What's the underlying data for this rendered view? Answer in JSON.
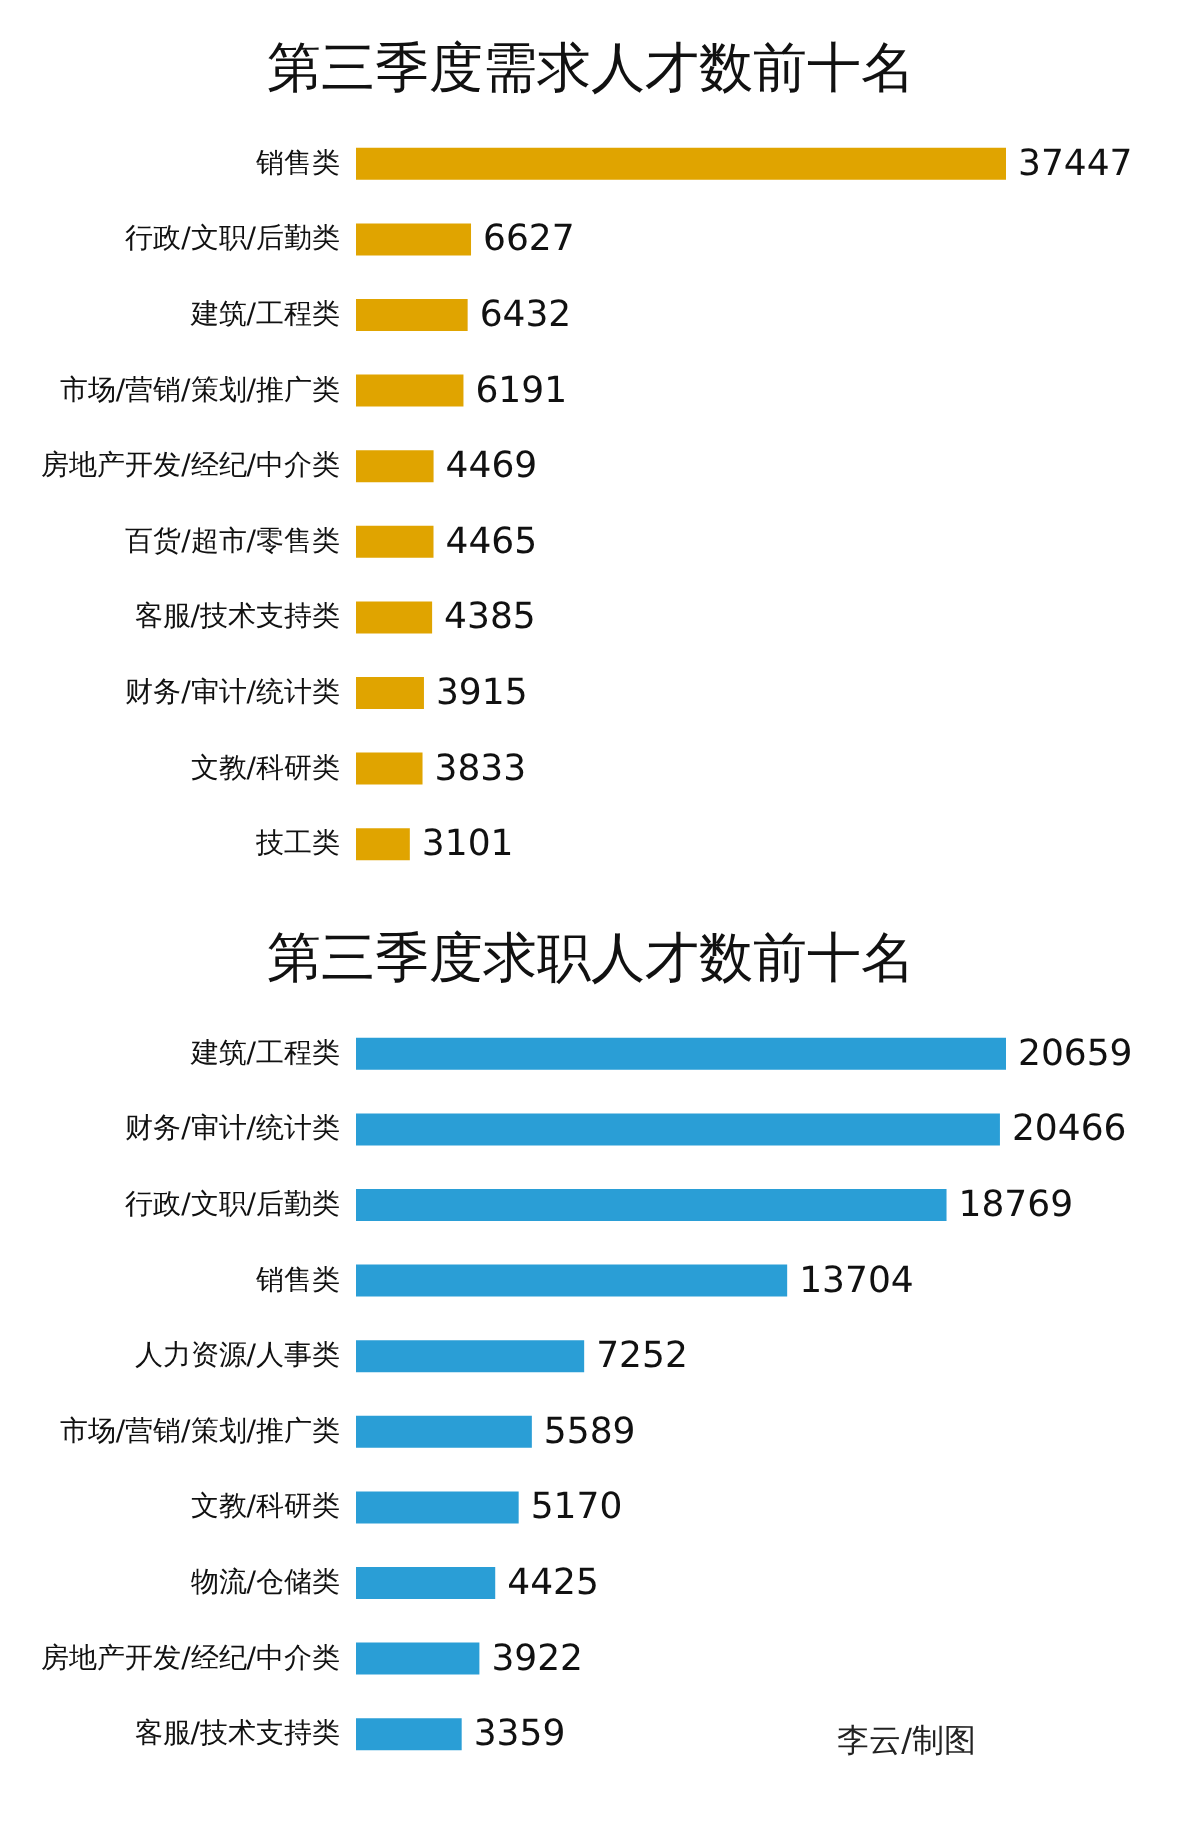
{
  "chart_data": [
    {
      "type": "bar",
      "title": "第三季度需求人才数前十名",
      "orientation": "horizontal",
      "data_labels": true,
      "color": "#e0a400",
      "categories": [
        "销售类",
        "行政/文职/后勤类",
        "建筑/工程类",
        "市场/营销/策划/推广类",
        "房地产开发/经纪/中介类",
        "百货/超市/零售类",
        "客服/技术支持类",
        "财务/审计/统计类",
        "文教/科研类",
        "技工类"
      ],
      "values": [
        37447,
        6627,
        6432,
        6191,
        4469,
        4465,
        4385,
        3915,
        3833,
        3101
      ]
    },
    {
      "type": "bar",
      "title": "第三季度求职人才数前十名",
      "orientation": "horizontal",
      "data_labels": true,
      "color": "#2a9ed6",
      "categories": [
        "建筑/工程类",
        "财务/审计/统计类",
        "行政/文职/后勤类",
        "销售类",
        "人力资源/人事类",
        "市场/营销/策划/推广类",
        "文教/科研类",
        "物流/仓储类",
        "房地产开发/经纪/中介类",
        "客服/技术支持类"
      ],
      "values": [
        20659,
        20466,
        18769,
        13704,
        7252,
        5589,
        5170,
        4425,
        3922,
        3359
      ],
      "annotations": [
        "李云/制图"
      ]
    }
  ]
}
